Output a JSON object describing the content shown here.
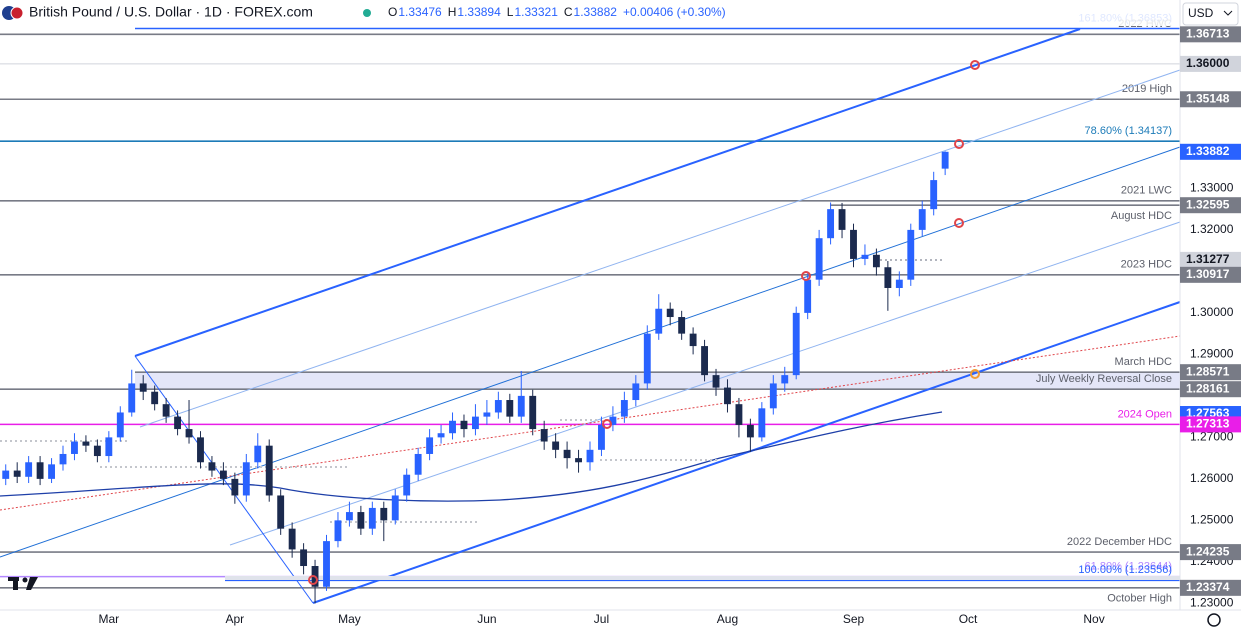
{
  "header": {
    "symbol": "British Pound / U.S. Dollar · 1D · FOREX.com",
    "ohlc": [
      {
        "key": "O",
        "value": "1.33476"
      },
      {
        "key": "H",
        "value": "1.33894"
      },
      {
        "key": "L",
        "value": "1.33321"
      },
      {
        "key": "C",
        "value": "1.33882"
      }
    ],
    "change": "+0.00406 (+0.30%)",
    "currency": "USD"
  },
  "chart_data": {
    "type": "candlestick",
    "categories": [
      null,
      null,
      null,
      null,
      null,
      null,
      null,
      null,
      null,
      "Mar",
      null,
      null,
      null,
      null,
      null,
      null,
      null,
      null,
      null,
      null,
      "Apr",
      null,
      null,
      null,
      null,
      null,
      null,
      null,
      null,
      null,
      "May",
      null,
      null,
      null,
      null,
      null,
      null,
      null,
      null,
      null,
      null,
      null,
      "Jun",
      null,
      null,
      null,
      null,
      null,
      null,
      null,
      null,
      null,
      "Jul",
      null,
      null,
      null,
      null,
      null,
      null,
      null,
      null,
      null,
      null,
      "Aug",
      null,
      null,
      null,
      null,
      null,
      null,
      null,
      null,
      null,
      null,
      "Sep",
      null,
      null,
      null,
      null,
      null,
      null,
      null,
      null,
      null,
      "Oct",
      null,
      null,
      null,
      null,
      null,
      null,
      null,
      null,
      null,
      null,
      "Nov",
      null,
      null,
      null,
      null,
      null,
      null,
      null
    ],
    "open": [
      1.26,
      1.262,
      1.2605,
      1.264,
      1.26,
      1.2635,
      1.266,
      1.269,
      1.268,
      1.2655,
      1.27,
      1.276,
      1.283,
      1.281,
      1.278,
      1.275,
      1.272,
      1.27,
      1.264,
      1.262,
      1.26,
      1.256,
      1.264,
      1.268,
      1.256,
      1.248,
      1.243,
      1.239,
      1.234,
      1.245,
      1.25,
      1.252,
      1.248,
      1.253,
      1.25,
      1.256,
      1.261,
      1.266,
      1.27,
      1.271,
      1.274,
      1.272,
      1.275,
      1.276,
      1.279,
      1.275,
      1.28,
      1.272,
      1.269,
      1.267,
      1.265,
      1.264,
      1.267,
      1.273,
      1.275,
      1.279,
      1.283,
      1.295,
      1.301,
      1.299,
      1.295,
      1.292,
      1.285,
      1.282,
      1.278,
      1.273,
      1.27,
      1.277,
      1.283,
      1.285,
      1.3,
      1.308,
      1.318,
      1.325,
      1.32,
      1.313,
      1.314,
      1.311,
      1.306,
      1.308,
      1.32,
      1.325,
      1.33476,
      null,
      null,
      null,
      null,
      null,
      null,
      null,
      null,
      null,
      null,
      null,
      null,
      null,
      null,
      null,
      null,
      null,
      null,
      null,
      null
    ],
    "high": [
      1.2635,
      1.264,
      1.2655,
      1.2655,
      1.265,
      1.268,
      1.271,
      1.2705,
      1.2695,
      1.2715,
      1.2775,
      1.2863,
      1.285,
      1.2825,
      1.2795,
      1.2765,
      1.279,
      1.2715,
      1.2655,
      1.264,
      1.2615,
      1.266,
      1.271,
      1.2695,
      1.2575,
      1.2495,
      1.2445,
      1.2405,
      1.2465,
      1.252,
      1.2545,
      1.2535,
      1.2545,
      1.2545,
      1.2575,
      1.2625,
      1.2675,
      1.272,
      1.273,
      1.276,
      1.2755,
      1.278,
      1.279,
      1.281,
      1.2805,
      1.286,
      1.2815,
      1.274,
      1.271,
      1.269,
      1.267,
      1.269,
      1.275,
      1.2775,
      1.281,
      1.285,
      1.297,
      1.3045,
      1.3025,
      1.3005,
      1.2965,
      1.2935,
      1.2865,
      1.284,
      1.2795,
      1.2745,
      1.2785,
      1.285,
      1.287,
      1.3015,
      1.3095,
      1.32,
      1.3266,
      1.3265,
      1.3215,
      1.3165,
      1.3155,
      1.3125,
      1.31,
      1.3215,
      1.327,
      1.334,
      1.33894,
      null,
      null,
      null,
      null,
      null,
      null,
      null,
      null,
      null,
      null,
      null,
      null,
      null,
      null,
      null,
      null,
      null,
      null,
      null,
      null
    ],
    "low": [
      1.2585,
      1.259,
      1.259,
      1.2585,
      1.259,
      1.262,
      1.2645,
      1.2665,
      1.264,
      1.264,
      1.269,
      1.275,
      1.279,
      1.2765,
      1.2735,
      1.2705,
      1.2685,
      1.2625,
      1.2605,
      1.2585,
      1.254,
      1.2545,
      1.2625,
      1.2545,
      1.2465,
      1.241,
      1.237,
      1.23,
      1.233,
      1.2435,
      1.2485,
      1.2465,
      1.2465,
      1.245,
      1.249,
      1.2545,
      1.2595,
      1.2645,
      1.2685,
      1.2695,
      1.27,
      1.2705,
      1.273,
      1.2745,
      1.2735,
      1.2735,
      1.2705,
      1.267,
      1.265,
      1.2625,
      1.2615,
      1.262,
      1.2655,
      1.2715,
      1.2735,
      1.2775,
      1.2815,
      1.2935,
      1.297,
      1.2935,
      1.29,
      1.2835,
      1.28,
      1.276,
      1.27,
      1.2665,
      1.269,
      1.2755,
      1.281,
      1.284,
      1.2985,
      1.3065,
      1.3165,
      1.318,
      1.311,
      1.3115,
      1.309,
      1.3005,
      1.304,
      1.3065,
      1.3185,
      1.3235,
      1.33321,
      null,
      null,
      null,
      null,
      null,
      null,
      null,
      null,
      null,
      null,
      null,
      null,
      null,
      null,
      null,
      null,
      null,
      null,
      null,
      null
    ],
    "close": [
      1.262,
      1.2605,
      1.264,
      1.26,
      1.2635,
      1.266,
      1.269,
      1.268,
      1.2655,
      1.27,
      1.276,
      1.283,
      1.281,
      1.278,
      1.275,
      1.272,
      1.27,
      1.264,
      1.262,
      1.26,
      1.256,
      1.264,
      1.268,
      1.256,
      1.248,
      1.243,
      1.239,
      1.234,
      1.245,
      1.25,
      1.252,
      1.248,
      1.253,
      1.25,
      1.256,
      1.261,
      1.266,
      1.27,
      1.271,
      1.274,
      1.272,
      1.275,
      1.276,
      1.279,
      1.275,
      1.28,
      1.272,
      1.269,
      1.267,
      1.265,
      1.264,
      1.267,
      1.273,
      1.275,
      1.279,
      1.283,
      1.295,
      1.301,
      1.299,
      1.295,
      1.292,
      1.285,
      1.282,
      1.278,
      1.273,
      1.27,
      1.277,
      1.283,
      1.285,
      1.3,
      1.308,
      1.318,
      1.325,
      1.32,
      1.313,
      1.314,
      1.311,
      1.306,
      1.308,
      1.32,
      1.325,
      1.332,
      1.33882,
      null,
      null,
      null,
      null,
      null,
      null,
      null,
      null,
      null,
      null,
      null,
      null,
      null,
      null,
      null,
      null,
      null,
      null,
      null,
      null
    ],
    "up_color": "#2962ff",
    "down_color": "#1b2a4e",
    "ylim": [
      1.2284,
      1.3754
    ],
    "yticks": [
      {
        "value": 1.23,
        "label": "1.23000"
      },
      {
        "value": 1.24,
        "label": "1.24000"
      },
      {
        "value": 1.25,
        "label": "1.25000"
      },
      {
        "value": 1.26,
        "label": "1.26000"
      },
      {
        "value": 1.27,
        "label": "1.27000"
      },
      {
        "value": 1.29,
        "label": "1.29000"
      },
      {
        "value": 1.3,
        "label": "1.30000"
      },
      {
        "value": 1.32,
        "label": "1.32000"
      },
      {
        "value": 1.33,
        "label": "1.33000"
      }
    ],
    "grid": false,
    "levels": [
      {
        "value": 1.36853,
        "text": "161.80% (1.36853)",
        "color": "#2962ff"
      },
      {
        "value": 1.36713,
        "text": "2022 HWC",
        "tag": "1.36713",
        "color": "#787b86"
      },
      {
        "value": 1.36,
        "tag": "1.36000",
        "color": "#d1d4dc"
      },
      {
        "value": 1.35148,
        "text": "2019 High",
        "tag": "1.35148",
        "color": "#787b86"
      },
      {
        "value": 1.34137,
        "text": "78.60% (1.34137)",
        "color": "#1c7bb8"
      },
      {
        "value": 1.327,
        "text": "2021 LWC",
        "color": "#787b86"
      },
      {
        "value": 1.32595,
        "text": "August HDC",
        "tag": "1.32595",
        "color": "#787b86",
        "text_below": true
      },
      {
        "value": 1.31277,
        "tag": "1.31277",
        "color": "#d1d4dc"
      },
      {
        "value": 1.30917,
        "text": "2023 HDC",
        "tag": "1.30917",
        "color": "#787b86"
      },
      {
        "value": 1.28571,
        "text": "March HDC",
        "tag": "1.28571",
        "color": "#787b86"
      },
      {
        "value": 1.28161,
        "text": "July Weekly Reversal Close",
        "tag": "1.28161",
        "color": "#787b86"
      },
      {
        "value": 1.27563,
        "tag": "1.27563",
        "color": "#2962ff"
      },
      {
        "value": 1.27313,
        "text": "2024 Open",
        "tag": "1.27313",
        "color": "#e91ee8"
      },
      {
        "value": 1.24235,
        "text": "2022 December HDC",
        "tag": "1.24235",
        "color": "#787b86"
      },
      {
        "value": 1.23644,
        "text": "61.80% (1.23644)",
        "color": "#b388ff"
      },
      {
        "value": 1.23556,
        "text": "100.00% (1.23556)",
        "color": "#2962ff"
      },
      {
        "value": 1.23374,
        "text": "October High",
        "tag": "1.23374",
        "color": "#787b86",
        "text_below": true
      }
    ],
    "current_price": {
      "value": 1.33882,
      "tag": "1.33882",
      "color": "#2962ff"
    }
  }
}
